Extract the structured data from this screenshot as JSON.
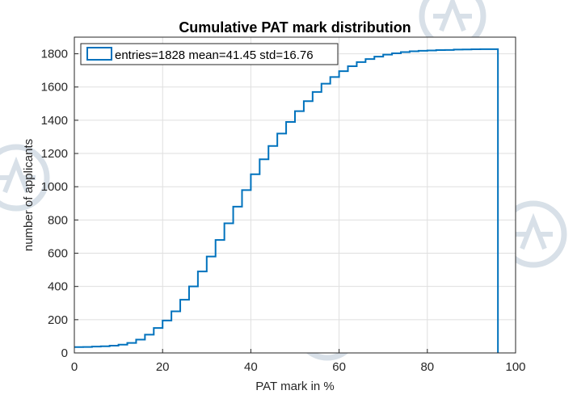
{
  "chart_data": {
    "type": "line",
    "title": "Cumulative PAT mark distribution",
    "xlabel": "PAT mark in %",
    "ylabel": "number of applicants",
    "xlim": [
      0,
      100
    ],
    "ylim": [
      0,
      1900
    ],
    "xticks": [
      0,
      20,
      40,
      60,
      80,
      100
    ],
    "yticks": [
      0,
      200,
      400,
      600,
      800,
      1000,
      1200,
      1400,
      1600,
      1800
    ],
    "xtick_labels": [
      "0",
      "20",
      "40",
      "60",
      "80",
      "100"
    ],
    "ytick_labels": [
      "0",
      "200",
      "400",
      "600",
      "800",
      "1000",
      "1200",
      "1400",
      "1600",
      "1800"
    ],
    "grid": true,
    "legend_position": "top-left",
    "series": [
      {
        "name": "entries=1828 mean=41.45 std=16.76",
        "color": "#0072bd",
        "style": "stairs",
        "x": [
          0,
          2,
          4,
          6,
          8,
          10,
          12,
          14,
          16,
          18,
          20,
          22,
          24,
          26,
          28,
          30,
          32,
          34,
          36,
          38,
          40,
          42,
          44,
          46,
          48,
          50,
          52,
          54,
          56,
          58,
          60,
          62,
          64,
          66,
          68,
          70,
          72,
          74,
          76,
          78,
          80,
          82,
          84,
          86,
          88,
          90,
          92,
          94,
          96
        ],
        "y": [
          35,
          36,
          38,
          40,
          44,
          50,
          60,
          80,
          110,
          150,
          195,
          250,
          320,
          400,
          490,
          580,
          680,
          780,
          880,
          980,
          1075,
          1165,
          1245,
          1320,
          1390,
          1455,
          1515,
          1570,
          1620,
          1660,
          1695,
          1725,
          1750,
          1768,
          1783,
          1795,
          1803,
          1810,
          1815,
          1818,
          1820,
          1822,
          1823,
          1825,
          1826,
          1827,
          1828,
          1828,
          1828
        ],
        "x_end": 96
      }
    ]
  }
}
